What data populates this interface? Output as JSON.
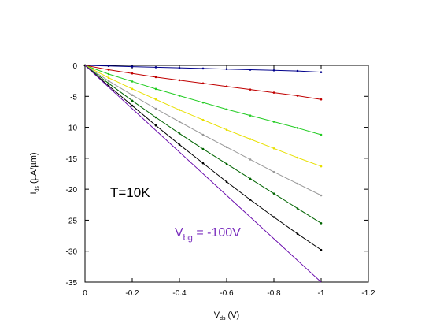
{
  "chart_data": {
    "type": "line",
    "xlabel": {
      "main": "V",
      "sub": "ds",
      "unit": " (V)"
    },
    "ylabel": {
      "main": "I",
      "sub": "ds",
      "unit": " (µA/µm)"
    },
    "xlim": [
      0,
      -1.2
    ],
    "ylim": [
      -35,
      0
    ],
    "x_ticks": [
      0,
      -0.2,
      -0.4,
      -0.6,
      -0.8,
      -1,
      -1.2
    ],
    "x_tick_labels": [
      "0",
      "-0.2",
      "-0.4",
      "-0.6",
      "-0.8",
      "-1",
      "-1.2"
    ],
    "y_ticks": [
      0,
      -5,
      -10,
      -15,
      -20,
      -25,
      -30,
      -35
    ],
    "y_tick_labels": [
      "0",
      "-5",
      "-10",
      "-15",
      "-20",
      "-25",
      "-30",
      "-35"
    ],
    "grid": false,
    "annotations": {
      "temperature": "T=10K",
      "vbg_main": "V",
      "vbg_sub": "bg",
      "vbg_value": " = -100V"
    },
    "series": [
      {
        "color": "#00008b",
        "x": [
          0,
          -0.1,
          -0.2,
          -0.3,
          -0.4,
          -0.5,
          -0.6,
          -0.7,
          -0.8,
          -0.9,
          -1.0
        ],
        "y": [
          0,
          -0.1,
          -0.2,
          -0.3,
          -0.4,
          -0.5,
          -0.6,
          -0.7,
          -0.8,
          -0.9,
          -1.1
        ]
      },
      {
        "color": "#c00000",
        "x": [
          0,
          -0.1,
          -0.2,
          -0.3,
          -0.4,
          -0.5,
          -0.6,
          -0.7,
          -0.8,
          -0.9,
          -1.0
        ],
        "y": [
          0,
          -0.7,
          -1.3,
          -1.9,
          -2.4,
          -2.9,
          -3.4,
          -3.9,
          -4.4,
          -4.9,
          -5.5
        ]
      },
      {
        "color": "#22cc22",
        "x": [
          0,
          -0.1,
          -0.2,
          -0.3,
          -0.4,
          -0.5,
          -0.6,
          -0.7,
          -0.8,
          -0.9,
          -1.0
        ],
        "y": [
          0,
          -1.4,
          -2.6,
          -3.8,
          -4.9,
          -6.0,
          -7.1,
          -8.1,
          -9.1,
          -10.1,
          -11.2
        ]
      },
      {
        "color": "#e8e000",
        "x": [
          0,
          -0.1,
          -0.2,
          -0.3,
          -0.4,
          -0.5,
          -0.6,
          -0.7,
          -0.8,
          -0.9,
          -1.0
        ],
        "y": [
          0,
          -2.0,
          -3.8,
          -5.5,
          -7.2,
          -8.8,
          -10.4,
          -11.9,
          -13.4,
          -14.9,
          -16.3
        ]
      },
      {
        "color": "#999999",
        "x": [
          0,
          -0.1,
          -0.2,
          -0.3,
          -0.4,
          -0.5,
          -0.6,
          -0.7,
          -0.8,
          -0.9,
          -1.0
        ],
        "y": [
          0,
          -2.5,
          -4.8,
          -7.0,
          -9.1,
          -11.2,
          -13.2,
          -15.2,
          -17.2,
          -19.1,
          -21.0
        ]
      },
      {
        "color": "#006400",
        "x": [
          0,
          -0.1,
          -0.2,
          -0.3,
          -0.4,
          -0.5,
          -0.6,
          -0.7,
          -0.8,
          -0.9,
          -1.0
        ],
        "y": [
          0,
          -2.9,
          -5.7,
          -8.4,
          -11.0,
          -13.5,
          -15.9,
          -18.3,
          -20.7,
          -23.1,
          -25.5
        ]
      },
      {
        "color": "#000000",
        "x": [
          0,
          -0.1,
          -0.2,
          -0.3,
          -0.4,
          -0.5,
          -0.6,
          -0.7,
          -0.8,
          -0.9,
          -1.0
        ],
        "y": [
          0,
          -3.3,
          -6.5,
          -9.7,
          -12.8,
          -15.8,
          -18.8,
          -21.7,
          -24.5,
          -27.2,
          -29.8
        ]
      },
      {
        "color": "#6a0dad",
        "x": [
          0,
          -0.1,
          -0.2,
          -0.3,
          -0.4,
          -0.5,
          -0.6,
          -0.7,
          -0.8,
          -0.9,
          -1.0
        ],
        "y": [
          0,
          -3.5,
          -7.0,
          -10.5,
          -14.0,
          -17.5,
          -21.0,
          -24.5,
          -28.0,
          -31.5,
          -35.0
        ]
      }
    ]
  },
  "colors": {
    "vbg_annotation": "#7b2fbe",
    "temperature_annotation": "#000000"
  }
}
